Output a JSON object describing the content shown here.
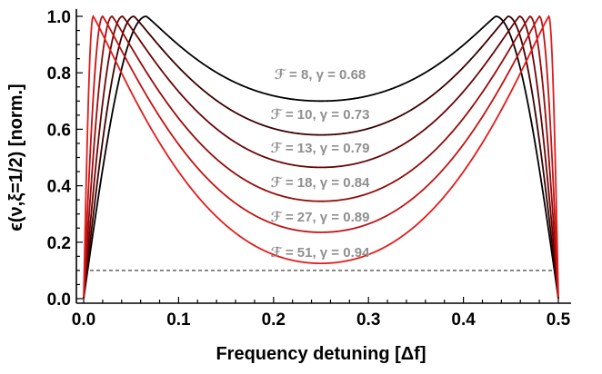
{
  "chart_data": {
    "type": "line",
    "xlabel": "Frequency detuning [Δf]",
    "ylabel": "ϵ(ν,ξ=1/2) [norm.]",
    "xlim": [
      0,
      0.5
    ],
    "ylim": [
      0,
      1.05
    ],
    "xticks": [
      "0.0",
      "0.1",
      "0.2",
      "0.3",
      "0.4",
      "0.5"
    ],
    "yticks": [
      "0.0",
      "0.2",
      "0.4",
      "0.6",
      "0.8",
      "1.0"
    ],
    "grid": false,
    "series": [
      {
        "label": "ℱ = 8, γ = 0.68",
        "color": "#000000",
        "peak_x": 0.066,
        "min_y": 0.7
      },
      {
        "label": "ℱ = 10, γ = 0.73",
        "color": "#3a0000",
        "peak_x": 0.053,
        "min_y": 0.58
      },
      {
        "label": "ℱ = 13, γ = 0.79",
        "color": "#6a0404",
        "peak_x": 0.041,
        "min_y": 0.465
      },
      {
        "label": "ℱ = 18, γ = 0.84",
        "color": "#960a0a",
        "peak_x": 0.03,
        "min_y": 0.345
      },
      {
        "label": "ℱ = 27, γ = 0.89",
        "color": "#c21212",
        "peak_x": 0.02,
        "min_y": 0.235
      },
      {
        "label": "ℱ = 51, γ = 0.94",
        "color": "#e41a1a",
        "peak_x": 0.01,
        "min_y": 0.125
      }
    ],
    "reference_line": {
      "y": 0.1,
      "style": "dashed"
    }
  }
}
